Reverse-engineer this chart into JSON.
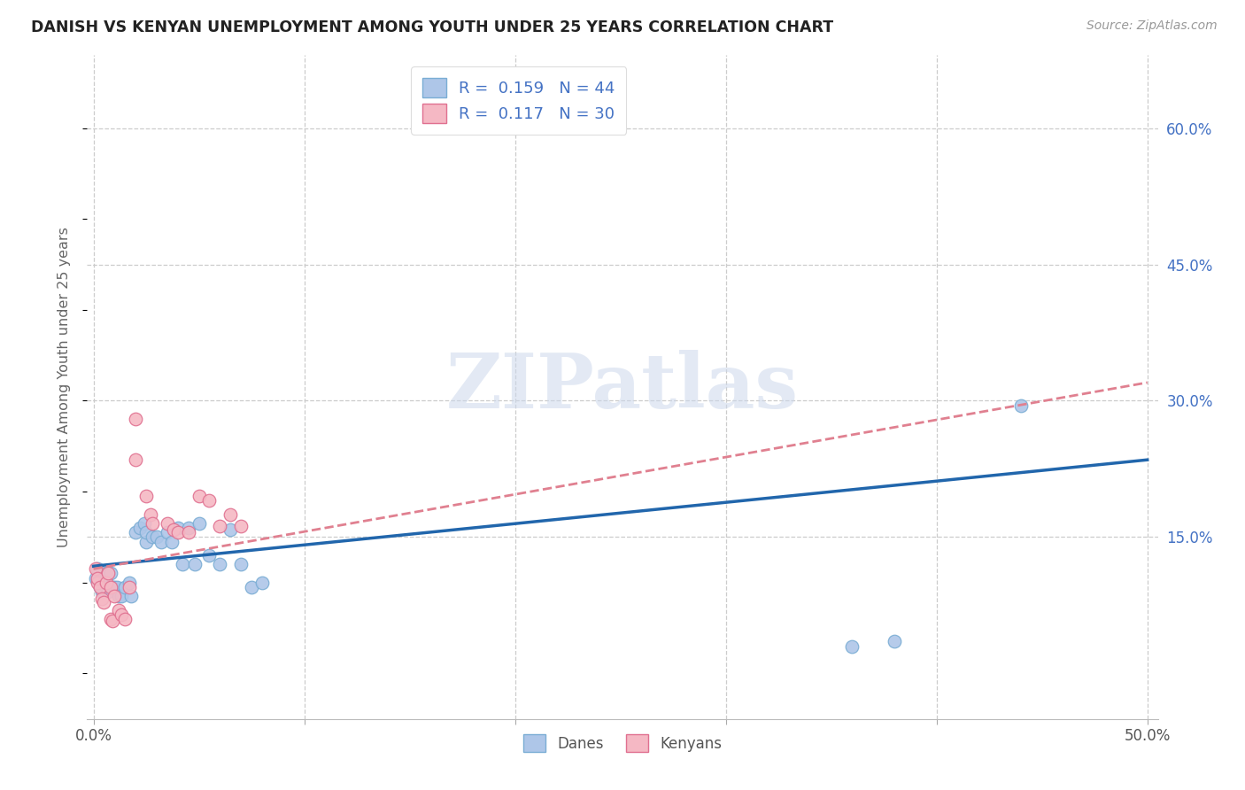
{
  "title": "DANISH VS KENYAN UNEMPLOYMENT AMONG YOUTH UNDER 25 YEARS CORRELATION CHART",
  "source": "Source: ZipAtlas.com",
  "ylabel": "Unemployment Among Youth under 25 years",
  "xlim": [
    -0.003,
    0.505
  ],
  "ylim": [
    -0.05,
    0.68
  ],
  "ytick_positions": [
    0.15,
    0.3,
    0.45,
    0.6
  ],
  "ytick_labels": [
    "15.0%",
    "30.0%",
    "45.0%",
    "60.0%"
  ],
  "dane_color": "#aec6e8",
  "dane_edge_color": "#7aadd4",
  "kenyan_color": "#f5b8c4",
  "kenyan_edge_color": "#e07090",
  "dane_line_color": "#2166ac",
  "kenyan_line_color": "#e08090",
  "background_color": "#ffffff",
  "grid_color": "#cccccc",
  "watermark": "ZIPatlas",
  "watermark_color": "#ccd8ec",
  "legend_r_dane": "0.159",
  "legend_n_dane": "44",
  "legend_r_kenyan": "0.117",
  "legend_n_kenyan": "30",
  "dane_trend_x0": 0.0,
  "dane_trend_y0": 0.118,
  "dane_trend_x1": 0.5,
  "dane_trend_y1": 0.235,
  "kenyan_trend_x0": 0.0,
  "kenyan_trend_y0": 0.115,
  "kenyan_trend_x1": 0.5,
  "kenyan_trend_y1": 0.32,
  "dane_x": [
    0.001,
    0.002,
    0.003,
    0.003,
    0.004,
    0.004,
    0.005,
    0.006,
    0.006,
    0.007,
    0.008,
    0.009,
    0.01,
    0.011,
    0.012,
    0.013,
    0.015,
    0.017,
    0.018,
    0.02,
    0.022,
    0.024,
    0.025,
    0.025,
    0.028,
    0.03,
    0.032,
    0.035,
    0.037,
    0.04,
    0.042,
    0.045,
    0.048,
    0.05,
    0.055,
    0.06,
    0.065,
    0.07,
    0.075,
    0.08,
    0.2,
    0.36,
    0.38,
    0.44
  ],
  "dane_y": [
    0.105,
    0.115,
    0.1,
    0.095,
    0.105,
    0.09,
    0.1,
    0.095,
    0.11,
    0.09,
    0.11,
    0.095,
    0.095,
    0.095,
    0.085,
    0.085,
    0.095,
    0.1,
    0.085,
    0.155,
    0.16,
    0.165,
    0.145,
    0.155,
    0.15,
    0.15,
    0.145,
    0.155,
    0.145,
    0.16,
    0.12,
    0.16,
    0.12,
    0.165,
    0.13,
    0.12,
    0.158,
    0.12,
    0.095,
    0.1,
    0.61,
    0.03,
    0.035,
    0.295
  ],
  "kenyan_x": [
    0.001,
    0.002,
    0.002,
    0.003,
    0.004,
    0.005,
    0.006,
    0.007,
    0.008,
    0.008,
    0.009,
    0.01,
    0.012,
    0.013,
    0.015,
    0.017,
    0.02,
    0.02,
    0.025,
    0.027,
    0.028,
    0.035,
    0.038,
    0.04,
    0.045,
    0.05,
    0.055,
    0.06,
    0.065,
    0.07
  ],
  "kenyan_y": [
    0.115,
    0.1,
    0.105,
    0.095,
    0.082,
    0.078,
    0.1,
    0.11,
    0.095,
    0.06,
    0.058,
    0.085,
    0.07,
    0.065,
    0.06,
    0.095,
    0.28,
    0.235,
    0.195,
    0.175,
    0.165,
    0.165,
    0.158,
    0.155,
    0.155,
    0.195,
    0.19,
    0.162,
    0.175,
    0.162
  ]
}
